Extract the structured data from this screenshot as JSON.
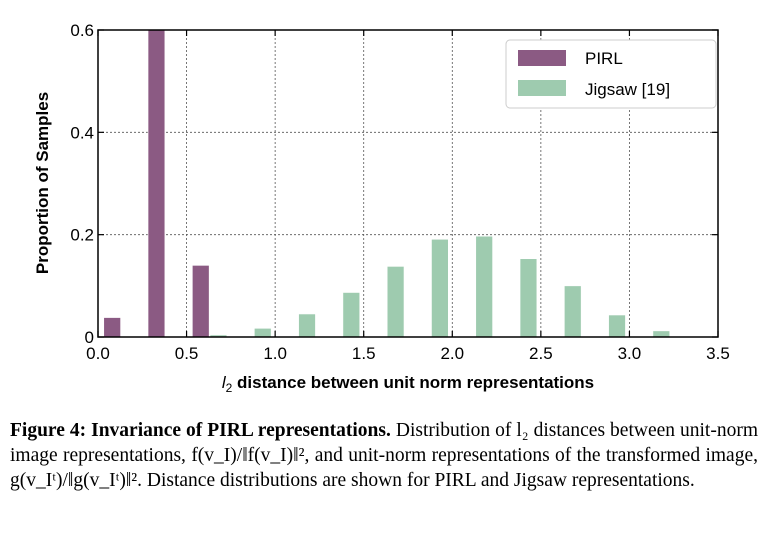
{
  "chart_data": {
    "type": "bar",
    "title": "",
    "xlabel": {
      "var": "l",
      "sub": "2",
      "rest": " distance between unit norm representations"
    },
    "ylabel": "Proportion of Samples",
    "xlim": [
      0.0,
      3.5
    ],
    "ylim": [
      0.0,
      0.6
    ],
    "xticks": [
      "0.0",
      "0.5",
      "1.0",
      "1.5",
      "2.0",
      "2.5",
      "3.0",
      "3.5"
    ],
    "xtick_values": [
      0.0,
      0.5,
      1.0,
      1.5,
      2.0,
      2.5,
      3.0,
      3.5
    ],
    "yticks": [
      "0",
      "0.2",
      "0.4",
      "0.6"
    ],
    "ytick_values": [
      0,
      0.2,
      0.4,
      0.6
    ],
    "grid": true,
    "legend_position": "top-right",
    "bar_width": 0.095,
    "series": [
      {
        "name": "PIRL",
        "color": "#8B5A83",
        "x": [
          0.08,
          0.33,
          0.58
        ],
        "values": [
          0.038,
          0.6,
          0.14
        ]
      },
      {
        "name": "Jigsaw [19]",
        "color": "#9ECBAF",
        "x": [
          0.68,
          0.93,
          1.18,
          1.43,
          1.68,
          1.93,
          2.18,
          2.43,
          2.68,
          2.93,
          3.18
        ],
        "values": [
          0.004,
          0.017,
          0.045,
          0.087,
          0.138,
          0.191,
          0.197,
          0.153,
          0.1,
          0.043,
          0.012
        ]
      }
    ]
  },
  "caption": {
    "label": "Figure 4:",
    "title": "Invariance of PIRL representations.",
    "text": "Distribution of l₂ distances between unit-norm image representations, f(v_I)/‖f(v_I)‖², and unit-norm representations of the transformed image, g(v_Iᵗ)/‖g(v_Iᵗ)‖². Distance distributions are shown for PIRL and Jigsaw representations."
  }
}
